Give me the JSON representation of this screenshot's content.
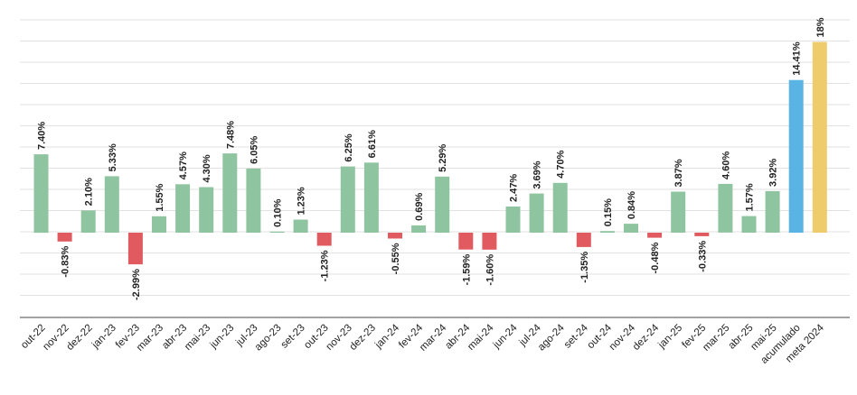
{
  "chart_data": {
    "type": "bar",
    "title": "",
    "xlabel": "",
    "ylabel": "",
    "categories": [
      "out-22",
      "nov-22",
      "dez-22",
      "jan-23",
      "fev-23",
      "mar-23",
      "abr-23",
      "mai-23",
      "jun-23",
      "jul-23",
      "ago-23",
      "set-23",
      "out-23",
      "nov-23",
      "dez-23",
      "jan-24",
      "fev-24",
      "mar-24",
      "abr-24",
      "mai-24",
      "jun-24",
      "jul-24",
      "ago-24",
      "set-24",
      "out-24",
      "nov-24",
      "dez-24",
      "jan-25",
      "fev-25",
      "mar-25",
      "abr-25",
      "mai-25",
      "acumulado",
      "meta 2024"
    ],
    "values": [
      7.4,
      -0.83,
      2.1,
      5.33,
      -2.99,
      1.55,
      4.57,
      4.3,
      7.48,
      6.05,
      0.1,
      1.23,
      -1.23,
      6.25,
      6.61,
      -0.55,
      0.69,
      5.29,
      -1.59,
      -1.6,
      2.47,
      3.69,
      4.7,
      -1.35,
      0.15,
      0.84,
      -0.48,
      3.87,
      -0.33,
      4.6,
      1.57,
      3.92,
      14.41,
      18
    ],
    "value_labels": [
      "7.40%",
      "-0.83%",
      "2.10%",
      "5.33%",
      "-2.99%",
      "1.55%",
      "4.57%",
      "4.30%",
      "7.48%",
      "6.05%",
      "0.10%",
      "1.23%",
      "-1.23%",
      "6.25%",
      "6.61%",
      "-0.55%",
      "0.69%",
      "5.29%",
      "-1.59%",
      "-1.60%",
      "2.47%",
      "3.69%",
      "4.70%",
      "-1.35%",
      "0.15%",
      "0.84%",
      "-0.48%",
      "3.87%",
      "-0.33%",
      "4.60%",
      "1.57%",
      "3.92%",
      "14.41%",
      "18%"
    ],
    "bar_kinds": [
      "pos",
      "neg",
      "pos",
      "pos",
      "neg",
      "pos",
      "pos",
      "pos",
      "pos",
      "pos",
      "pos",
      "pos",
      "neg",
      "pos",
      "pos",
      "neg",
      "pos",
      "pos",
      "neg",
      "neg",
      "pos",
      "pos",
      "pos",
      "neg",
      "pos",
      "pos",
      "neg",
      "pos",
      "neg",
      "pos",
      "pos",
      "pos",
      "total",
      "target"
    ],
    "colors": {
      "pos": "#8fc4a0",
      "neg": "#e05a5f",
      "total": "#5ab4e3",
      "target": "#eecb6b",
      "grid": "#e2e2e2",
      "baseline": "#6b6b6b"
    },
    "ylim": [
      -8.5,
      20.5
    ],
    "grid": true,
    "legend": "none"
  }
}
